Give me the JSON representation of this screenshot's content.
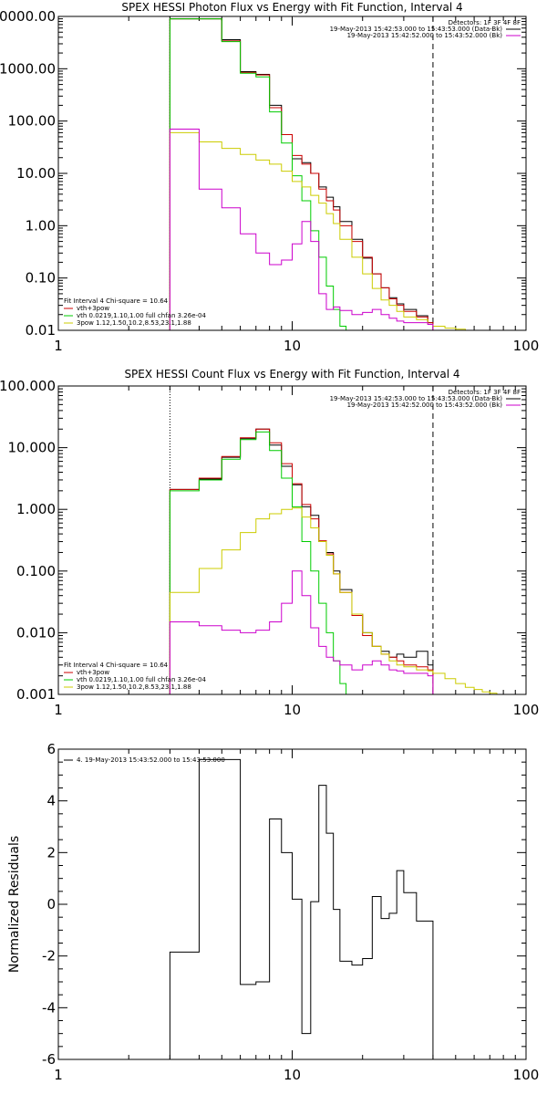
{
  "chart_data": [
    {
      "type": "line",
      "title": "SPEX HESSI Photon Flux vs Energy with Fit Function, Interval 4",
      "xlabel": "",
      "ylabel": "",
      "xscale": "log",
      "yscale": "log",
      "xlim": [
        1,
        100
      ],
      "ylim": [
        0.01,
        10000
      ],
      "xtick_labels": [
        "1",
        "10",
        "100"
      ],
      "ytick_values": [
        0.01,
        0.1,
        1,
        10,
        100,
        1000,
        10000
      ],
      "ytick_labels": [
        "0.01",
        "0.10",
        "1.00",
        "10.00",
        "100.00",
        "1000.00",
        "10000.00"
      ],
      "vlines": [
        {
          "x": 3,
          "style": "dotted"
        },
        {
          "x": 40,
          "style": "dashed"
        }
      ],
      "legend_right": {
        "placement": "top-right",
        "header": "Detectors: 1F 3F 4F 8F",
        "entries": [
          {
            "text": "19-May-2013 15:42:53.000 to 15:43:53.000 (Data-Bk)",
            "color": "#000000"
          },
          {
            "text": "19-May-2013 15:42:52.000 to 15:43:52.000 (Bk)",
            "color": "#cc00cc"
          }
        ]
      },
      "legend_left": {
        "placement": "bottom-left",
        "header": "Fit Interval 4   Chi-square = 10.64",
        "entries": [
          {
            "text": "vth+3pow",
            "color": "#cc0000"
          },
          {
            "text": "vth 0.0219,1.10,1.00  full chfan 3.26e-04",
            "color": "#00cc00"
          },
          {
            "text": "3pow 1.12,1.50,10.2,8.53,23.1,1.88",
            "color": "#cccc00"
          }
        ]
      },
      "series": [
        {
          "color": "#000000",
          "edges": [
            3,
            4,
            5,
            6,
            7,
            8,
            9,
            10,
            11,
            12,
            13,
            14,
            15,
            16,
            18,
            20,
            22,
            24,
            26,
            28,
            30,
            34,
            38,
            40
          ],
          "values": [
            9000,
            9000,
            3600,
            880,
            780,
            200,
            55,
            19,
            16,
            10,
            5.5,
            3.5,
            2.3,
            1.2,
            0.55,
            0.24,
            0.12,
            0.065,
            0.042,
            0.032,
            0.025,
            0.019,
            0.014
          ]
        },
        {
          "color": "#cc0000",
          "edges": [
            3,
            4,
            5,
            6,
            7,
            8,
            9,
            10,
            11,
            12,
            13,
            14,
            15,
            16,
            18,
            20,
            22,
            24,
            26,
            28,
            30,
            34,
            38,
            40
          ],
          "values": [
            9000,
            9000,
            3400,
            850,
            760,
            180,
            55,
            22,
            15,
            10,
            5,
            3,
            2,
            1,
            0.5,
            0.25,
            0.12,
            0.065,
            0.04,
            0.03,
            0.023,
            0.018,
            0.014
          ]
        },
        {
          "color": "#00cc00",
          "edges": [
            3,
            4,
            5,
            6,
            7,
            8,
            9,
            10,
            11,
            12,
            13,
            14,
            15,
            16,
            17
          ],
          "values": [
            9000,
            9000,
            3300,
            820,
            700,
            150,
            38,
            9,
            3,
            0.8,
            0.25,
            0.07,
            0.025,
            0.012
          ]
        },
        {
          "color": "#cccc00",
          "edges": [
            3,
            4,
            5,
            6,
            7,
            8,
            9,
            10,
            11,
            12,
            13,
            14,
            15,
            16,
            18,
            20,
            22,
            24,
            26,
            28,
            30,
            34,
            38,
            40,
            45,
            50,
            55
          ],
          "values": [
            60,
            40,
            30,
            23,
            18,
            15,
            11,
            7,
            5.5,
            3.8,
            2.7,
            1.7,
            1.1,
            0.55,
            0.25,
            0.12,
            0.063,
            0.038,
            0.03,
            0.023,
            0.018,
            0.016,
            0.013,
            0.012,
            0.011,
            0.0105
          ]
        },
        {
          "color": "#cc00cc",
          "edges": [
            3,
            4,
            5,
            6,
            7,
            8,
            9,
            10,
            11,
            12,
            13,
            14,
            15,
            16,
            18,
            20,
            22,
            24,
            26,
            28,
            30,
            34,
            38,
            40
          ],
          "values": [
            70,
            5,
            2.2,
            0.7,
            0.3,
            0.18,
            0.22,
            0.45,
            1.2,
            0.5,
            0.05,
            0.025,
            0.028,
            0.024,
            0.02,
            0.022,
            0.025,
            0.02,
            0.017,
            0.015,
            0.014,
            0.014,
            0.013
          ]
        }
      ]
    },
    {
      "type": "line",
      "title": "SPEX HESSI Count Flux vs Energy with Fit Function, Interval 4",
      "xlabel": "",
      "ylabel": "",
      "xscale": "log",
      "yscale": "log",
      "xlim": [
        1,
        100
      ],
      "ylim": [
        0.001,
        100
      ],
      "xtick_labels": [
        "1",
        "10",
        "100"
      ],
      "ytick_values": [
        0.001,
        0.01,
        0.1,
        1,
        10,
        100
      ],
      "ytick_labels": [
        "0.001",
        "0.010",
        "0.100",
        "1.000",
        "10.000",
        "100.000"
      ],
      "vlines": [
        {
          "x": 3,
          "style": "dotted"
        },
        {
          "x": 40,
          "style": "dashed"
        }
      ],
      "legend_right": {
        "placement": "top-right",
        "header": "Detectors: 1F 3F 4F 8F",
        "entries": [
          {
            "text": "19-May-2013 15:42:53.000 to 15:43:53.000 (Data-Bk)",
            "color": "#000000"
          },
          {
            "text": "19-May-2013 15:42:52.000 to 15:43:52.000 (Bk)",
            "color": "#cc00cc"
          }
        ]
      },
      "legend_left": {
        "placement": "bottom-left",
        "header": "Fit Interval 4   Chi-square = 10.64",
        "entries": [
          {
            "text": "vth+3pow",
            "color": "#cc0000"
          },
          {
            "text": "vth 0.0219,1.10,1.00  full chfan 3.26e-04",
            "color": "#00cc00"
          },
          {
            "text": "3pow 1.12,1.50,10.2,8.53,23.1,1.88",
            "color": "#cccc00"
          }
        ]
      },
      "series": [
        {
          "color": "#000000",
          "edges": [
            3,
            4,
            5,
            6,
            7,
            8,
            9,
            10,
            11,
            12,
            13,
            14,
            15,
            16,
            18,
            20,
            22,
            24,
            26,
            28,
            30,
            34,
            38,
            40
          ],
          "values": [
            2.1,
            3.1,
            7,
            14,
            20,
            11,
            5,
            2.5,
            1.1,
            0.8,
            0.3,
            0.2,
            0.1,
            0.05,
            0.02,
            0.01,
            0.006,
            0.005,
            0.004,
            0.0045,
            0.004,
            0.005,
            0.003
          ]
        },
        {
          "color": "#cc0000",
          "edges": [
            3,
            4,
            5,
            6,
            7,
            8,
            9,
            10,
            11,
            12,
            13,
            14,
            15,
            16,
            18,
            20,
            22,
            24,
            26,
            28,
            30,
            34,
            38,
            40
          ],
          "values": [
            2.1,
            3.2,
            7.2,
            14.5,
            20,
            12,
            5.5,
            2.6,
            1.2,
            0.7,
            0.31,
            0.19,
            0.09,
            0.045,
            0.019,
            0.009,
            0.006,
            0.0045,
            0.004,
            0.0035,
            0.003,
            0.0028,
            0.0025
          ]
        },
        {
          "color": "#00cc00",
          "edges": [
            3,
            4,
            5,
            6,
            7,
            8,
            9,
            10,
            11,
            12,
            13,
            14,
            15,
            16,
            17
          ],
          "values": [
            2,
            3,
            6.5,
            13.5,
            18,
            9,
            3.2,
            1.1,
            0.3,
            0.1,
            0.03,
            0.01,
            0.0035,
            0.0015
          ]
        },
        {
          "color": "#cccc00",
          "edges": [
            3,
            4,
            5,
            6,
            7,
            8,
            9,
            10,
            11,
            12,
            13,
            14,
            15,
            16,
            18,
            20,
            22,
            24,
            26,
            28,
            30,
            34,
            38,
            40,
            45,
            50,
            55,
            60,
            65,
            70,
            75
          ],
          "values": [
            0.045,
            0.11,
            0.22,
            0.42,
            0.7,
            0.85,
            1,
            1.05,
            0.75,
            0.5,
            0.3,
            0.18,
            0.09,
            0.045,
            0.02,
            0.01,
            0.006,
            0.0045,
            0.0035,
            0.003,
            0.0028,
            0.0025,
            0.0024,
            0.0022,
            0.0018,
            0.0015,
            0.0013,
            0.0012,
            0.0011,
            0.00105
          ]
        },
        {
          "color": "#cc00cc",
          "edges": [
            3,
            4,
            5,
            6,
            7,
            8,
            9,
            10,
            11,
            12,
            13,
            14,
            15,
            16,
            18,
            20,
            22,
            24,
            26,
            28,
            30,
            34,
            38,
            40
          ],
          "values": [
            0.015,
            0.013,
            0.011,
            0.01,
            0.011,
            0.015,
            0.03,
            0.1,
            0.04,
            0.012,
            0.006,
            0.004,
            0.0035,
            0.003,
            0.0025,
            0.003,
            0.0035,
            0.003,
            0.0025,
            0.0024,
            0.0022,
            0.0022,
            0.002
          ]
        }
      ]
    },
    {
      "type": "line",
      "title": "",
      "xlabel": "",
      "ylabel": "Normalized Residuals",
      "xscale": "log",
      "yscale": "linear",
      "xlim": [
        1,
        100
      ],
      "ylim": [
        -6,
        6
      ],
      "xtick_labels": [
        "1",
        "10",
        "100"
      ],
      "ytick_values": [
        -6,
        -4,
        -2,
        0,
        2,
        4,
        6
      ],
      "ytick_labels": [
        "-6",
        "-4",
        "-2",
        "0",
        "2",
        "4",
        "6"
      ],
      "legend_left": {
        "placement": "top-left",
        "entries": [
          {
            "text": "4. 19-May-2013 15:43:52.000 to 15:43:53.000",
            "color": "#000000"
          }
        ]
      },
      "series": [
        {
          "color": "#000000",
          "edges": [
            3,
            4,
            5,
            6,
            7,
            8,
            9,
            10,
            11,
            12,
            13,
            14,
            15,
            16,
            18,
            20,
            22,
            24,
            26,
            28,
            30,
            34,
            38,
            40
          ],
          "values": [
            -1.85,
            5.6,
            5.6,
            -3.1,
            -3.0,
            3.3,
            2.0,
            0.2,
            -5.0,
            0.1,
            4.6,
            2.75,
            -0.2,
            -2.2,
            -2.35,
            -2.1,
            0.3,
            -0.55,
            -0.35,
            1.3,
            0.45,
            -0.65,
            -0.65
          ]
        }
      ]
    }
  ]
}
